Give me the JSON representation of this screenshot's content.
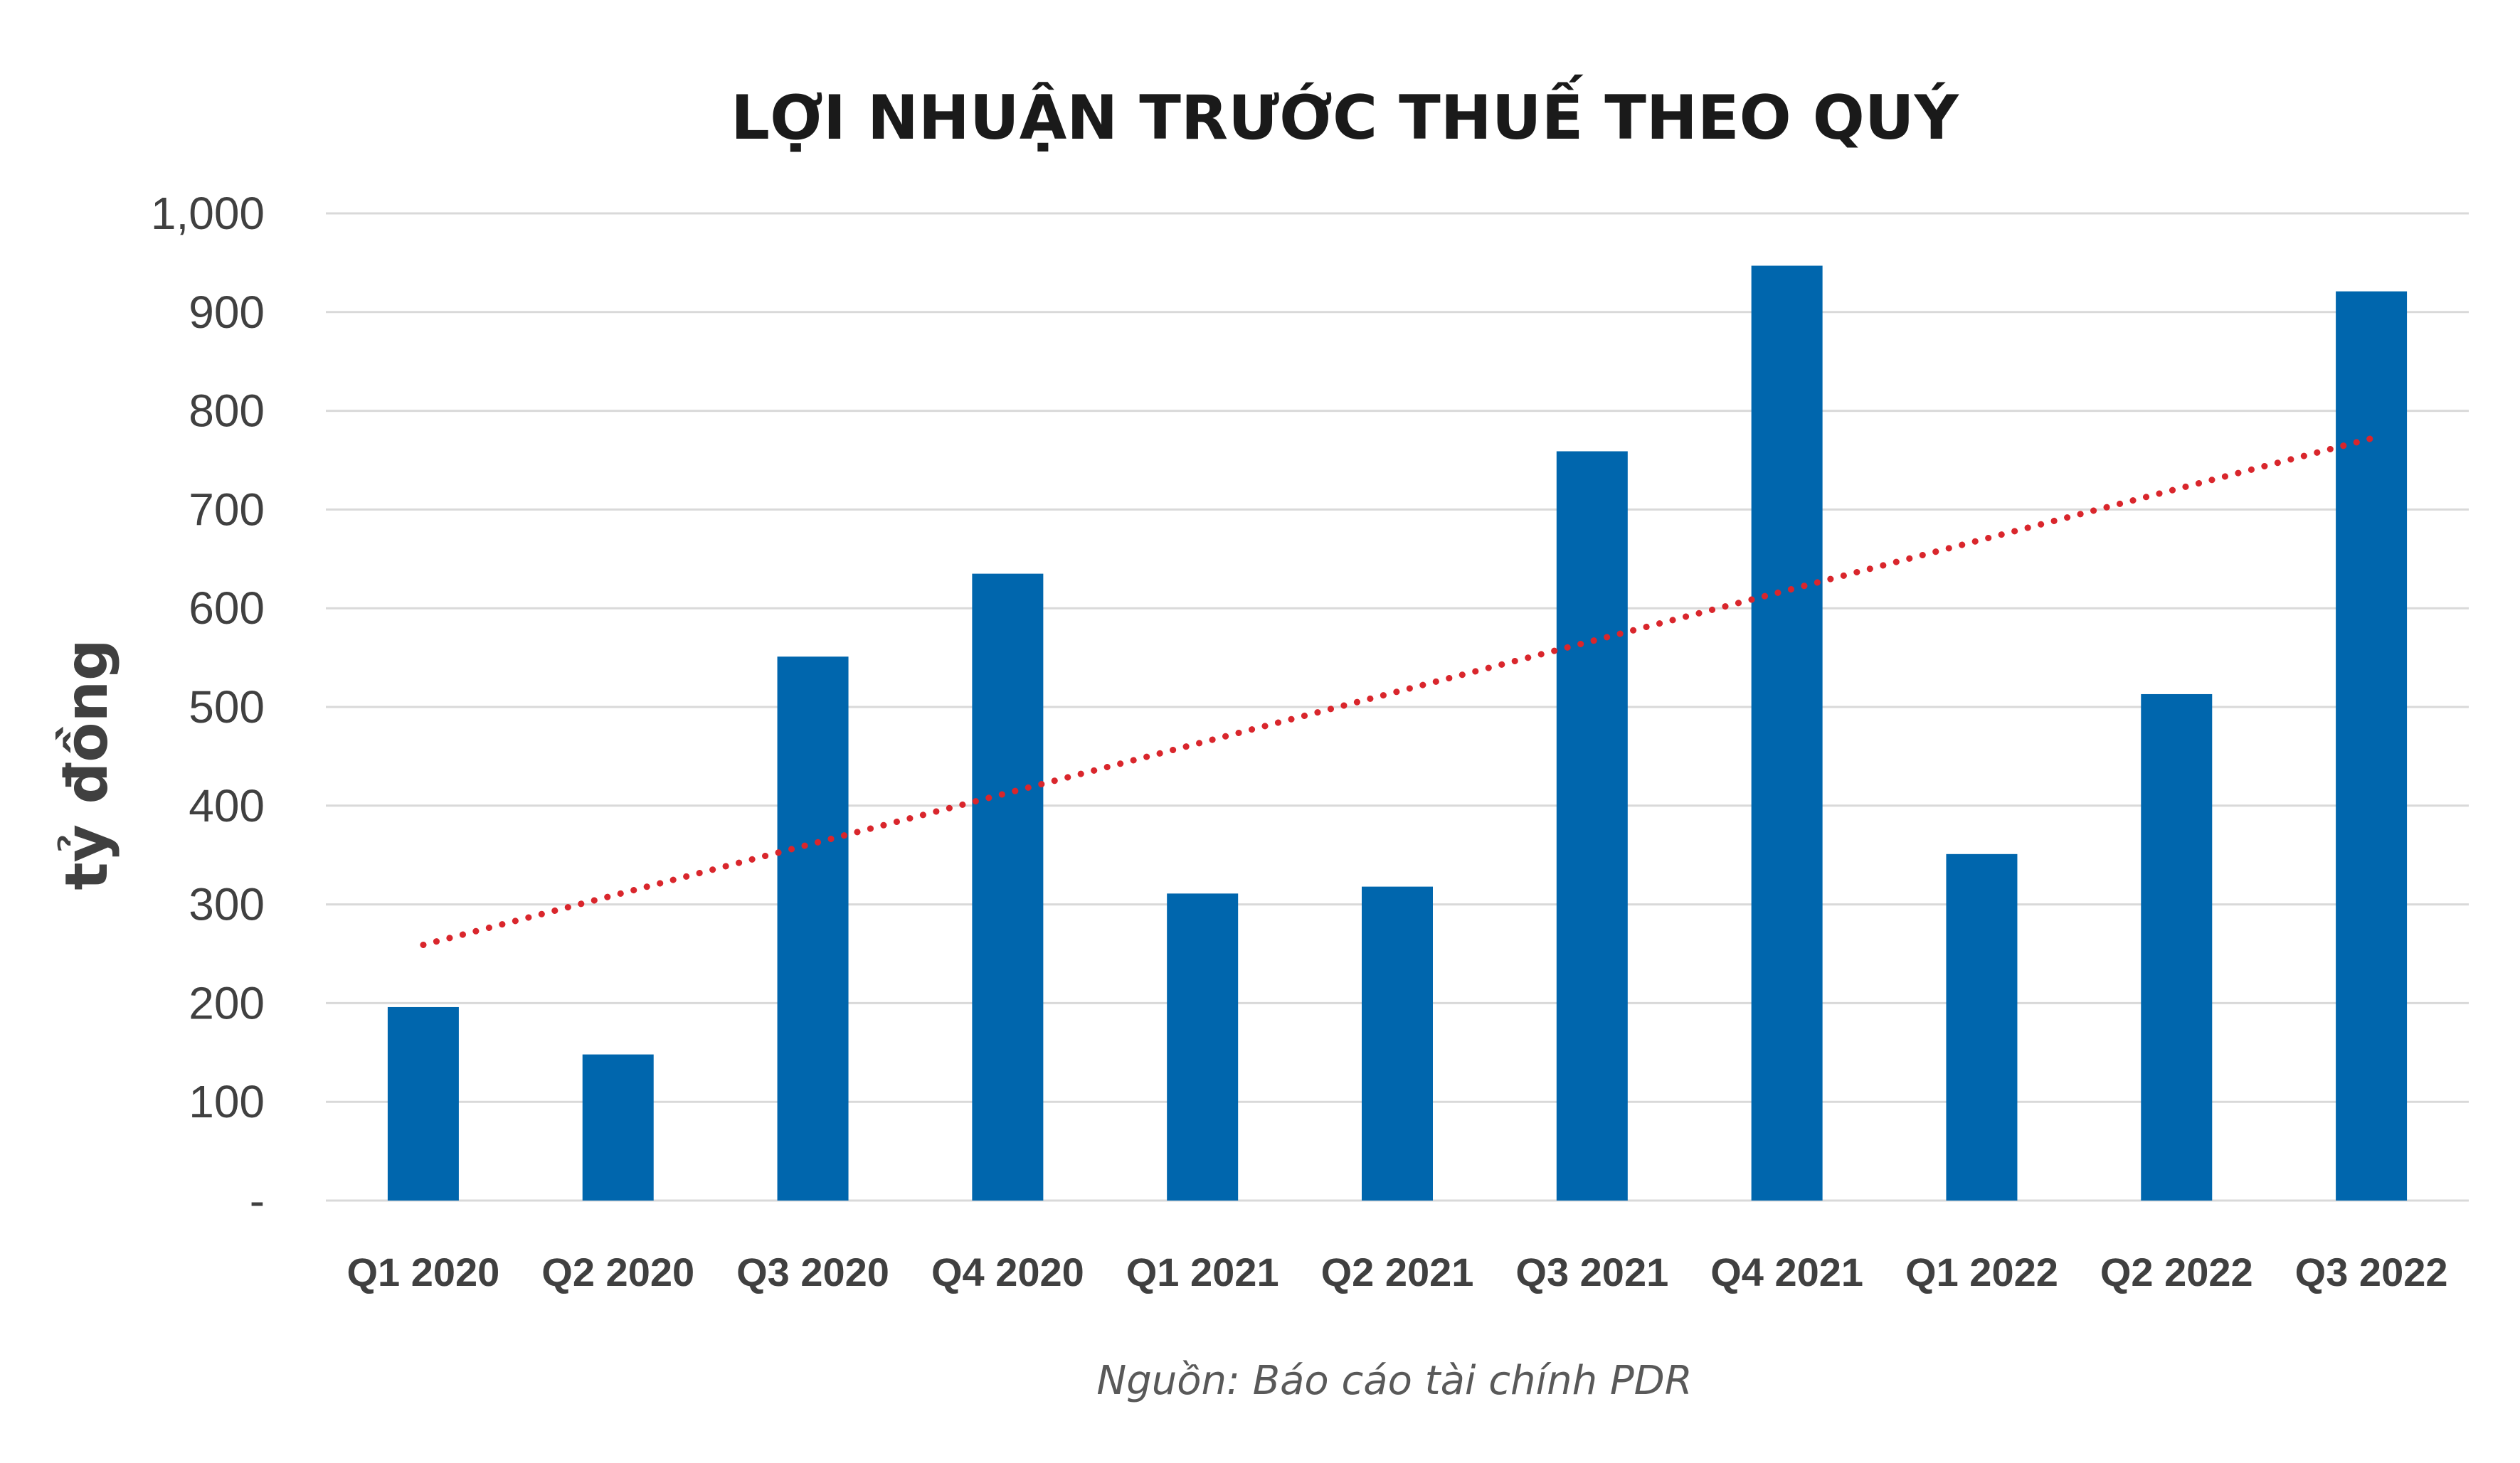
{
  "chart_data": {
    "type": "bar",
    "title": "LỢI NHUẬN TRƯỚC THUẾ THEO QUÝ",
    "ylabel": "tỷ đồng",
    "xlabel": "",
    "source": "Nguồn: Báo cáo tài chính PDR",
    "categories": [
      "Q1 2020",
      "Q2 2020",
      "Q3 2020",
      "Q4 2020",
      "Q1 2021",
      "Q2 2021",
      "Q3 2021",
      "Q4 2021",
      "Q1 2022",
      "Q2 2022",
      "Q3 2022"
    ],
    "values": [
      196,
      148,
      551,
      635,
      311,
      318,
      759,
      947,
      351,
      513,
      921
    ],
    "ylim": [
      0,
      1000
    ],
    "yticks": [
      {
        "value": 0,
        "label": "-"
      },
      {
        "value": 100,
        "label": "100"
      },
      {
        "value": 200,
        "label": "200"
      },
      {
        "value": 300,
        "label": "300"
      },
      {
        "value": 400,
        "label": "400"
      },
      {
        "value": 500,
        "label": "500"
      },
      {
        "value": 600,
        "label": "600"
      },
      {
        "value": 700,
        "label": "700"
      },
      {
        "value": 800,
        "label": "800"
      },
      {
        "value": 900,
        "label": "900"
      },
      {
        "value": 1000,
        "label": "1,000"
      }
    ],
    "trendline": {
      "type": "linear",
      "style": "dotted",
      "color": "#d9262c",
      "start": 259,
      "end": 772
    },
    "grid": true,
    "legend": "none",
    "bar_color": "#0066ad"
  }
}
